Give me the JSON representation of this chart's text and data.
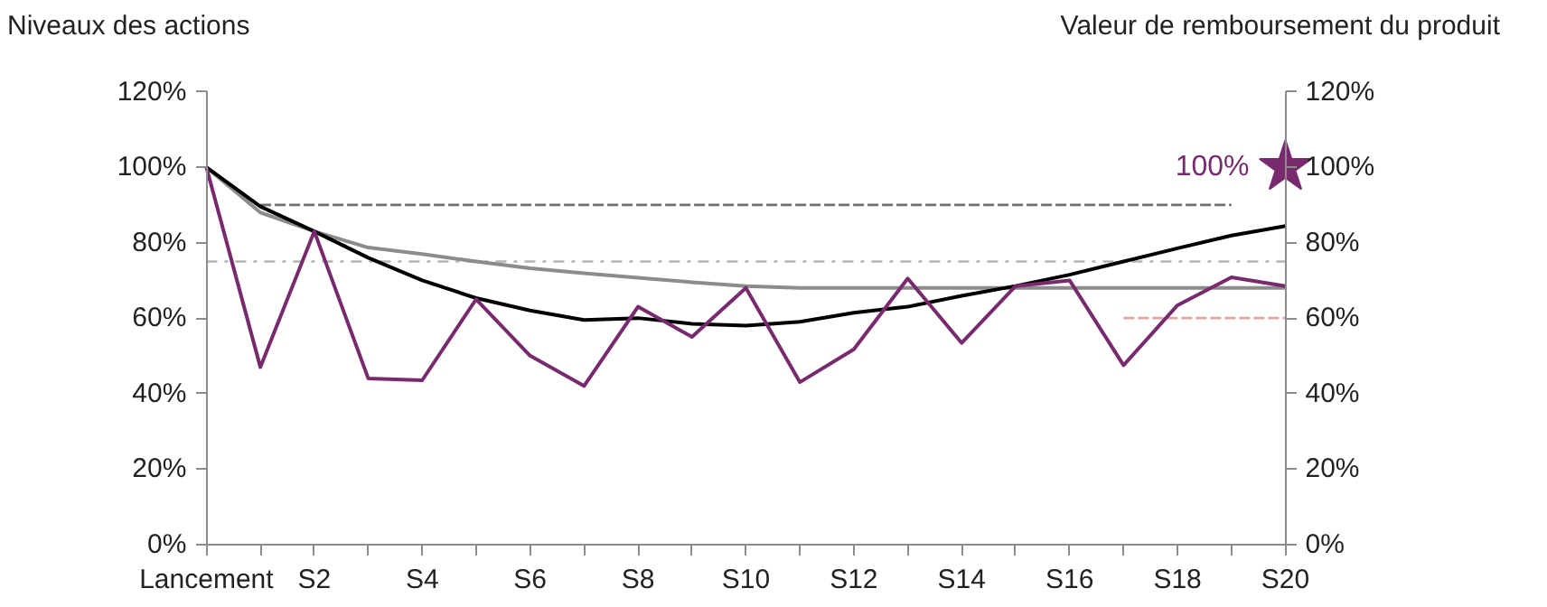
{
  "chart_data": {
    "type": "line",
    "ylabel": "Niveaux des actions",
    "y2label": "Valeur de remboursement du produit",
    "categories": [
      "Lancement",
      null,
      "S2",
      null,
      "S4",
      null,
      "S6",
      null,
      "S8",
      null,
      "S10",
      null,
      "S12",
      null,
      "S14",
      null,
      "S16",
      null,
      "S18",
      null,
      "S20"
    ],
    "ylim": [
      0,
      120
    ],
    "yticks": [
      {
        "value": 0,
        "label": "0%"
      },
      {
        "value": 20,
        "label": "20%"
      },
      {
        "value": 40,
        "label": "40%"
      },
      {
        "value": 60,
        "label": "60%"
      },
      {
        "value": 80,
        "label": "80%"
      },
      {
        "value": 100,
        "label": "100%"
      },
      {
        "value": 120,
        "label": "120%"
      }
    ],
    "y2lim": [
      0,
      120
    ],
    "y2ticks": [
      {
        "value": 0,
        "label": "0%"
      },
      {
        "value": 20,
        "label": "20%"
      },
      {
        "value": 40,
        "label": "40%"
      },
      {
        "value": 60,
        "label": "60%"
      },
      {
        "value": 80,
        "label": "80%"
      },
      {
        "value": 100,
        "label": "100%"
      },
      {
        "value": 120,
        "label": "120%"
      }
    ],
    "series": [
      {
        "line_style": "dashed",
        "color": "#6e6e6e",
        "values": [
          null,
          90,
          90,
          90,
          90,
          90,
          90,
          90,
          90,
          90,
          90,
          90,
          90,
          90,
          90,
          90,
          90,
          90,
          90,
          90,
          null
        ]
      },
      {
        "line_style": "dashdot",
        "color": "#b4b4b4",
        "values": [
          75,
          75,
          75,
          75,
          75,
          75,
          75,
          75,
          75,
          75,
          75,
          75,
          75,
          75,
          75,
          75,
          75,
          75,
          75,
          75,
          75
        ]
      },
      {
        "line_style": "dashed",
        "color": "#e8a4a4",
        "values": [
          null,
          null,
          null,
          null,
          null,
          null,
          null,
          null,
          null,
          null,
          null,
          null,
          null,
          null,
          null,
          null,
          null,
          60,
          60,
          60,
          60
        ]
      },
      {
        "color": "#8c8c8c",
        "values": [
          100,
          88,
          83,
          78.7,
          77,
          75,
          73.2,
          71.9,
          70.7,
          69.5,
          68.5,
          68,
          68,
          68,
          68,
          68,
          68,
          68,
          68,
          68,
          68
        ]
      },
      {
        "color": "#000000",
        "values": [
          100,
          89.6,
          83,
          76,
          70,
          65.3,
          62,
          59.5,
          60,
          58.5,
          58,
          59,
          61.4,
          63,
          65.9,
          68.5,
          71.5,
          75,
          78.5,
          81.9,
          84.4
        ]
      },
      {
        "color": "#782a6e",
        "values": [
          100,
          47,
          83,
          44,
          43.5,
          65,
          50,
          42,
          63,
          55,
          68,
          43,
          51.7,
          70.5,
          53.4,
          68.5,
          70,
          47.5,
          63.4,
          70.8,
          68.5
        ]
      },
      {
        "type": "scatter",
        "marker": "star",
        "color": "#782a6e",
        "values": [
          null,
          null,
          null,
          null,
          null,
          null,
          null,
          null,
          null,
          null,
          null,
          null,
          null,
          null,
          null,
          null,
          null,
          null,
          null,
          null,
          100
        ],
        "value_labels": [
          null,
          null,
          null,
          null,
          null,
          null,
          null,
          null,
          null,
          null,
          null,
          null,
          null,
          null,
          null,
          null,
          null,
          null,
          null,
          null,
          "100%"
        ]
      }
    ]
  }
}
